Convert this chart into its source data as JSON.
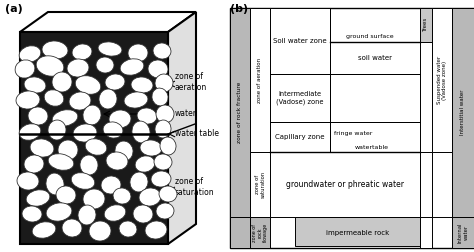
{
  "fig_width": 4.74,
  "fig_height": 2.52,
  "gray_col": "#b8b8b8",
  "light_gray": "#c8c8c8",
  "white": "#ffffff",
  "black": "#000000",
  "rock_dark": "#1a1a1a",
  "pores": [
    [
      30,
      198,
      11,
      8,
      15
    ],
    [
      55,
      202,
      13,
      9,
      -5
    ],
    [
      82,
      200,
      10,
      8,
      10
    ],
    [
      110,
      203,
      12,
      7,
      -8
    ],
    [
      138,
      199,
      10,
      9,
      5
    ],
    [
      162,
      201,
      9,
      8,
      -10
    ],
    [
      25,
      183,
      10,
      9,
      20
    ],
    [
      50,
      186,
      14,
      10,
      -12
    ],
    [
      78,
      184,
      11,
      9,
      8
    ],
    [
      105,
      187,
      9,
      8,
      -5
    ],
    [
      132,
      185,
      12,
      8,
      12
    ],
    [
      158,
      183,
      10,
      9,
      -8
    ],
    [
      35,
      167,
      11,
      8,
      -10
    ],
    [
      62,
      170,
      10,
      10,
      5
    ],
    [
      88,
      167,
      13,
      9,
      -15
    ],
    [
      115,
      170,
      10,
      8,
      8
    ],
    [
      142,
      167,
      11,
      8,
      -5
    ],
    [
      164,
      169,
      9,
      9,
      12
    ],
    [
      28,
      152,
      12,
      9,
      5
    ],
    [
      54,
      154,
      10,
      8,
      -18
    ],
    [
      80,
      151,
      11,
      9,
      10
    ],
    [
      108,
      153,
      9,
      10,
      -5
    ],
    [
      136,
      152,
      12,
      8,
      8
    ],
    [
      160,
      155,
      8,
      9,
      15
    ],
    [
      38,
      136,
      10,
      9,
      -8
    ],
    [
      65,
      134,
      13,
      8,
      12
    ],
    [
      92,
      137,
      9,
      10,
      -15
    ],
    [
      120,
      133,
      11,
      9,
      5
    ],
    [
      147,
      136,
      10,
      8,
      -10
    ],
    [
      165,
      138,
      9,
      9,
      8
    ],
    [
      30,
      120,
      11,
      8,
      15
    ],
    [
      57,
      122,
      9,
      10,
      -5
    ],
    [
      85,
      119,
      12,
      9,
      8
    ],
    [
      113,
      122,
      10,
      8,
      -12
    ],
    [
      141,
      120,
      9,
      11,
      10
    ],
    [
      163,
      123,
      8,
      9,
      -8
    ],
    [
      42,
      104,
      12,
      9,
      -10
    ],
    [
      68,
      102,
      10,
      10,
      5
    ],
    [
      96,
      105,
      11,
      8,
      -15
    ],
    [
      124,
      101,
      9,
      10,
      12
    ],
    [
      151,
      104,
      11,
      8,
      -5
    ],
    [
      168,
      106,
      8,
      9,
      10
    ],
    [
      34,
      88,
      10,
      9,
      8
    ],
    [
      61,
      90,
      13,
      8,
      -12
    ],
    [
      89,
      87,
      9,
      10,
      5
    ],
    [
      117,
      91,
      11,
      9,
      -8
    ],
    [
      145,
      88,
      10,
      8,
      15
    ],
    [
      163,
      90,
      9,
      8,
      -5
    ],
    [
      28,
      71,
      11,
      9,
      -5
    ],
    [
      55,
      68,
      9,
      11,
      10
    ],
    [
      83,
      71,
      12,
      8,
      -15
    ],
    [
      111,
      67,
      10,
      9,
      8
    ],
    [
      139,
      70,
      9,
      10,
      -10
    ],
    [
      161,
      73,
      10,
      8,
      5
    ],
    [
      38,
      54,
      12,
      8,
      12
    ],
    [
      66,
      57,
      10,
      9,
      -8
    ],
    [
      94,
      53,
      11,
      10,
      5
    ],
    [
      122,
      56,
      9,
      8,
      -12
    ],
    [
      150,
      55,
      11,
      9,
      8
    ],
    [
      168,
      58,
      9,
      8,
      -5
    ],
    [
      32,
      38,
      10,
      8,
      -5
    ],
    [
      59,
      40,
      13,
      9,
      10
    ],
    [
      87,
      37,
      9,
      10,
      -8
    ],
    [
      115,
      39,
      11,
      8,
      15
    ],
    [
      143,
      38,
      10,
      9,
      -10
    ],
    [
      165,
      41,
      9,
      8,
      8
    ],
    [
      44,
      22,
      12,
      8,
      12
    ],
    [
      72,
      24,
      10,
      9,
      -8
    ],
    [
      100,
      21,
      11,
      10,
      5
    ],
    [
      128,
      23,
      9,
      8,
      -12
    ],
    [
      156,
      22,
      11,
      9,
      8
    ]
  ]
}
